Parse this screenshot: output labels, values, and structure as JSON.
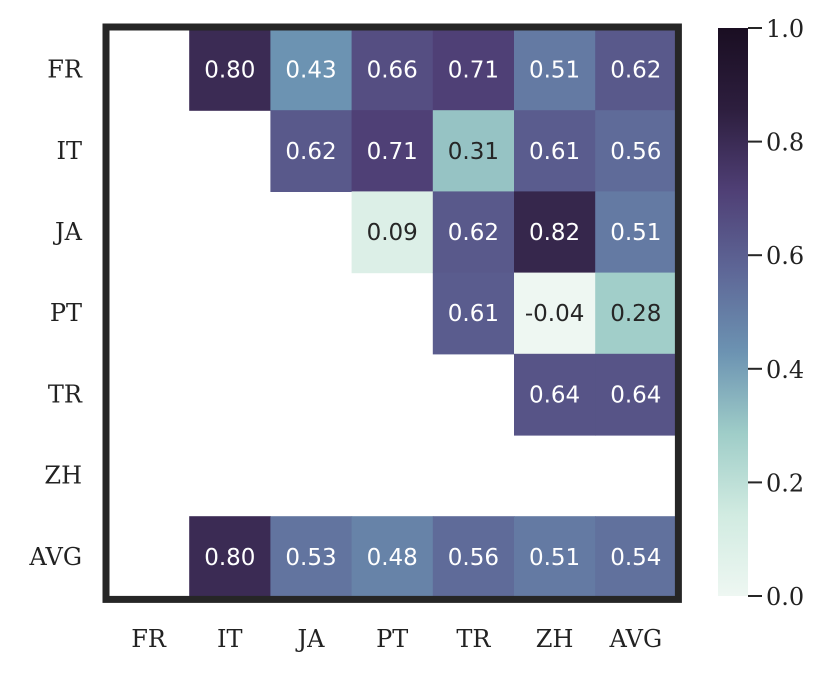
{
  "chart_data": {
    "type": "heatmap",
    "rows": [
      "FR",
      "IT",
      "JA",
      "PT",
      "TR",
      "ZH",
      "AVG"
    ],
    "columns": [
      "FR",
      "IT",
      "JA",
      "PT",
      "TR",
      "ZH",
      "AVG"
    ],
    "cells": [
      [
        null,
        0.8,
        0.43,
        0.66,
        0.71,
        0.51,
        0.62
      ],
      [
        null,
        null,
        0.62,
        0.71,
        0.31,
        0.61,
        0.56
      ],
      [
        null,
        null,
        null,
        0.09,
        0.62,
        0.82,
        0.51
      ],
      [
        null,
        null,
        null,
        null,
        0.61,
        -0.04,
        0.28
      ],
      [
        null,
        null,
        null,
        null,
        null,
        0.64,
        0.64
      ],
      [
        null,
        null,
        null,
        null,
        null,
        null,
        null
      ],
      [
        null,
        0.8,
        0.53,
        0.48,
        0.56,
        0.51,
        0.54
      ]
    ],
    "value_format_decimals": 2,
    "colorbar": {
      "min": 0.0,
      "max": 1.0,
      "ticks": [
        0.0,
        0.2,
        0.4,
        0.6,
        0.8,
        1.0
      ],
      "tick_labels": [
        "0.0",
        "0.2",
        "0.4",
        "0.6",
        "0.8",
        "1.0"
      ],
      "colormap_stops": [
        "#eef7f2",
        "#d1ebe1",
        "#9fcdc8",
        "#6c93b2",
        "#5e6797",
        "#4f3f75",
        "#2d1e3e",
        "#1a0e22"
      ]
    },
    "grid": false,
    "frame_color": "#262626"
  }
}
